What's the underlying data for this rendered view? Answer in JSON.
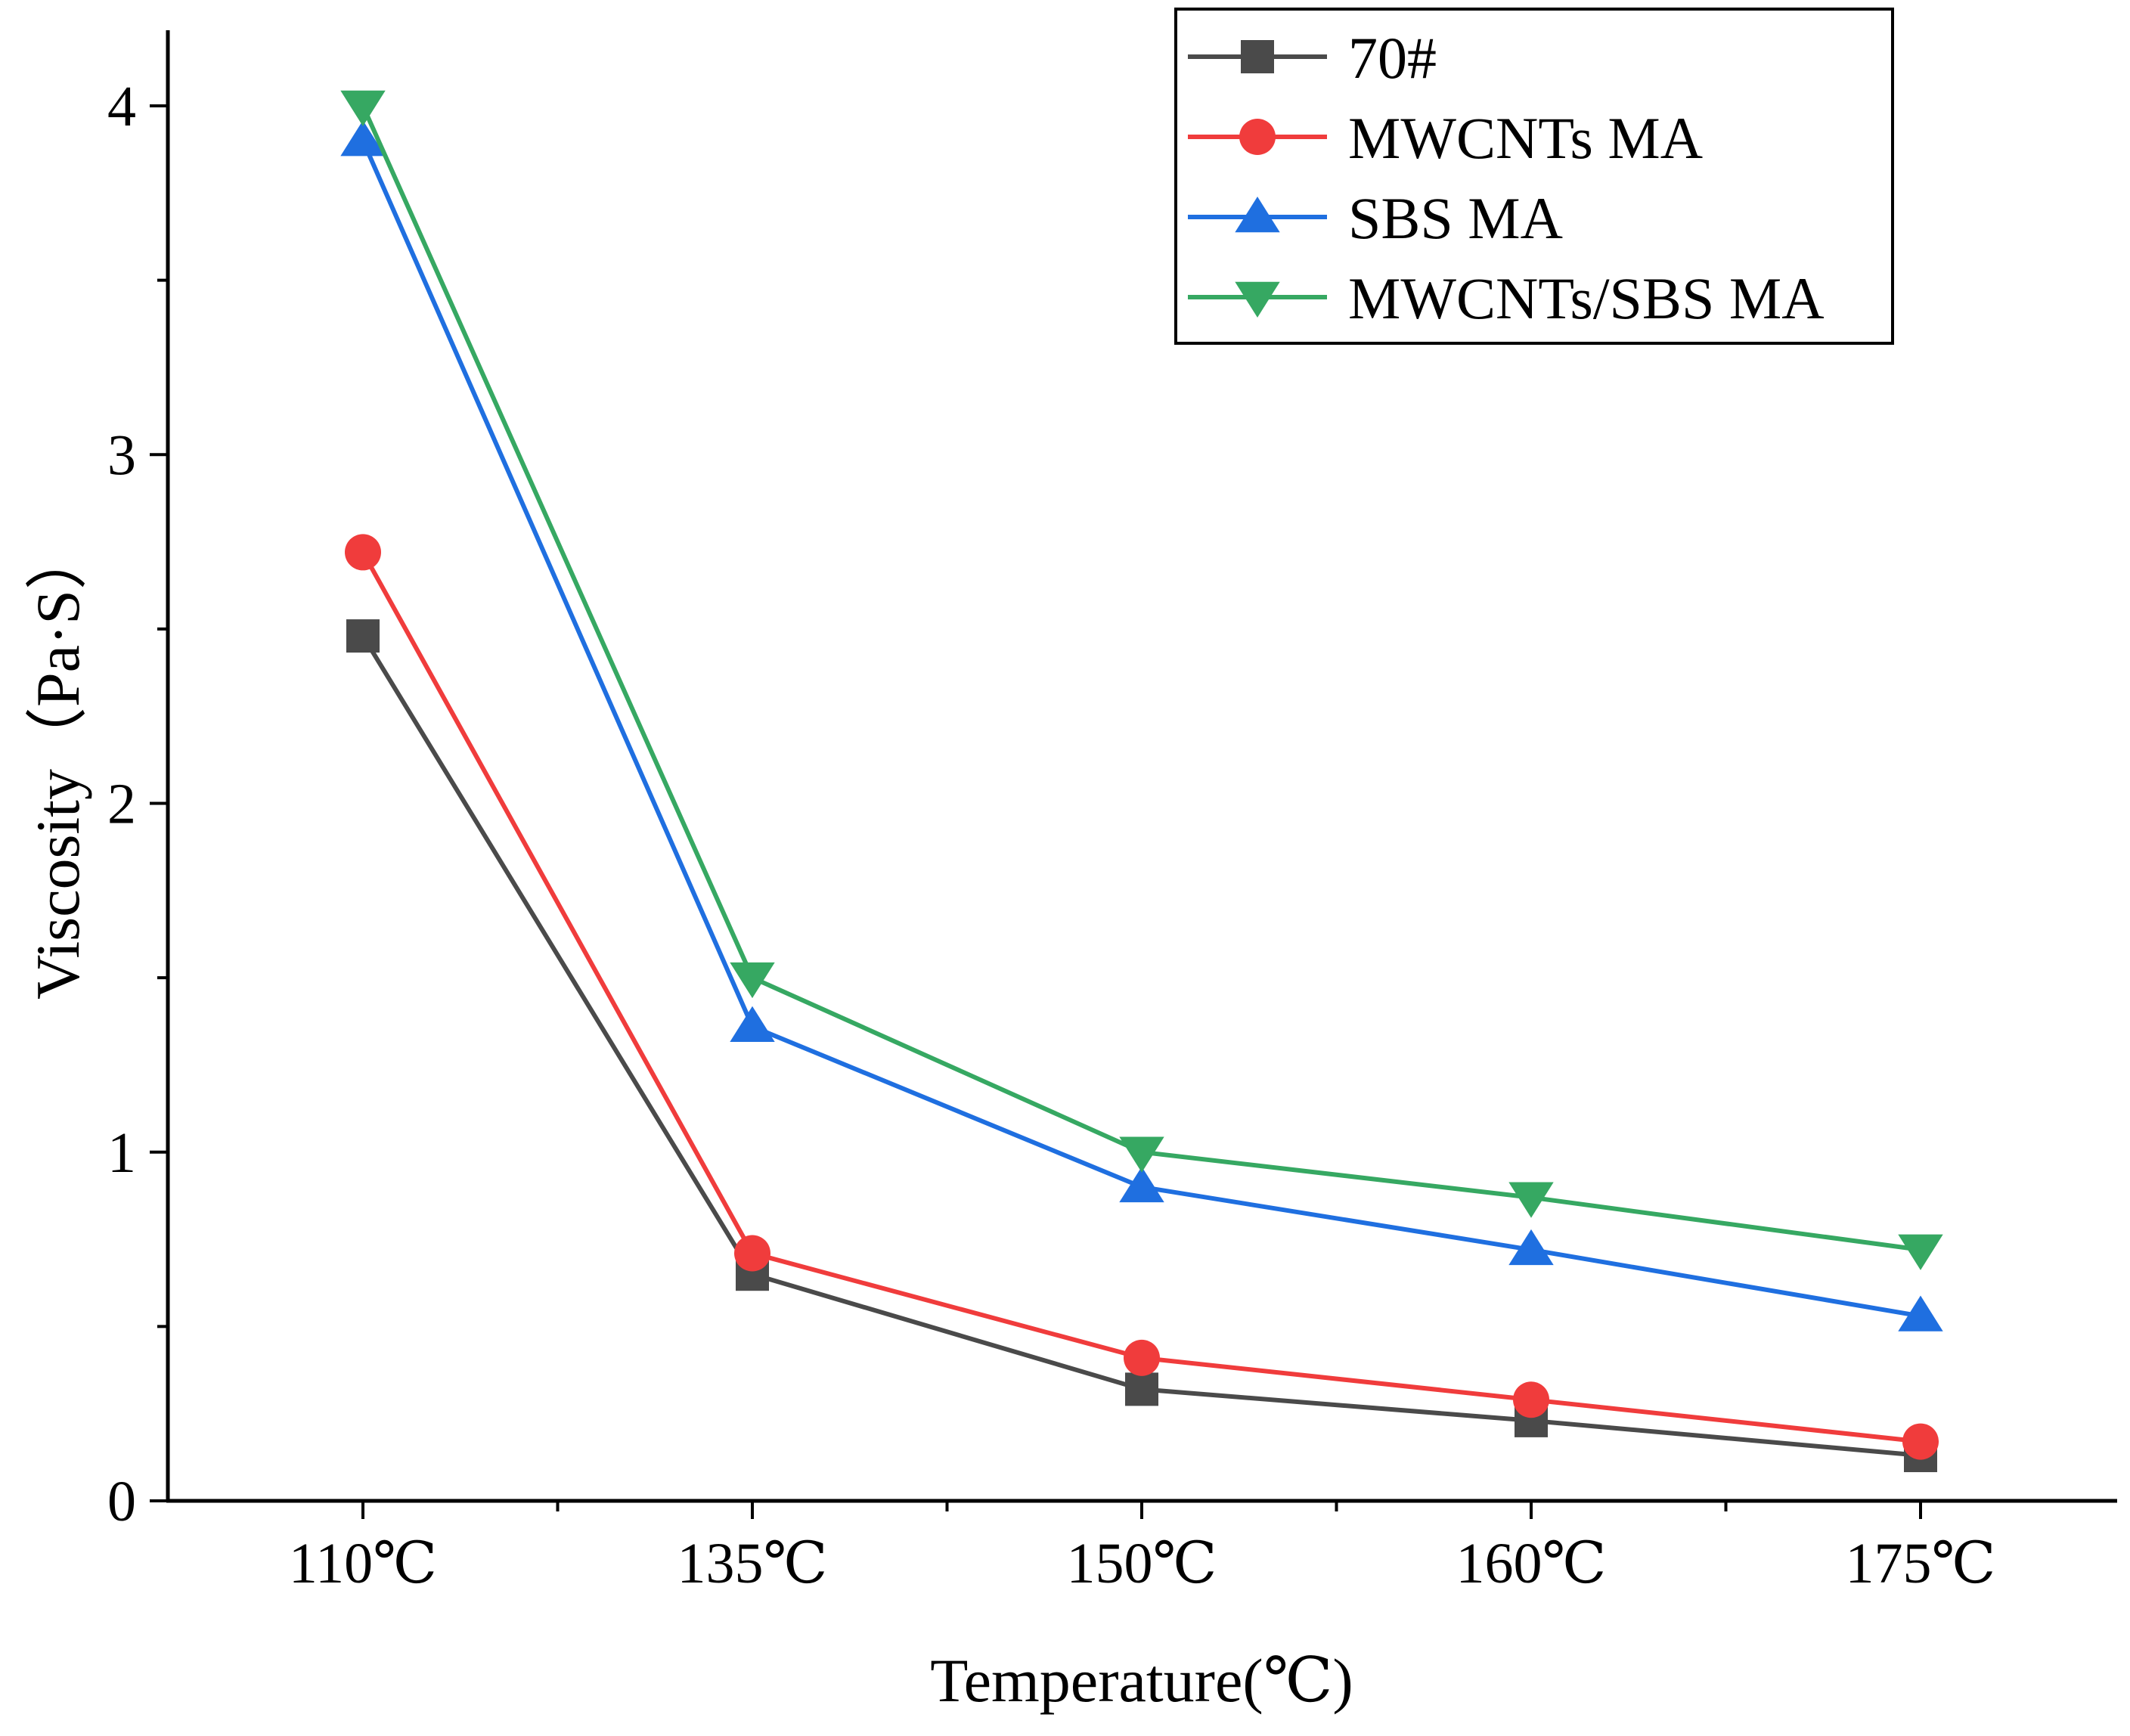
{
  "chart_data": {
    "type": "line",
    "title": "",
    "xlabel": "Temperature(℃)",
    "ylabel": "Viscosity（Pa·S）",
    "categories": [
      "110℃",
      "135℃",
      "150℃",
      "160℃",
      "175℃"
    ],
    "ylim": [
      0,
      4.2
    ],
    "yticks": [
      0,
      1,
      2,
      3,
      4
    ],
    "ytick_labels": [
      "0",
      "1",
      "2",
      "3",
      "4"
    ],
    "grid": false,
    "legend_position": "top-right",
    "series": [
      {
        "name": "70#",
        "marker": "square",
        "color": "#4a4a4a",
        "values": [
          2.48,
          0.65,
          0.32,
          0.23,
          0.13
        ]
      },
      {
        "name": "MWCNTs MA",
        "marker": "circle",
        "color": "#f03c3c",
        "values": [
          2.72,
          0.71,
          0.41,
          0.29,
          0.17
        ]
      },
      {
        "name": "SBS MA",
        "marker": "triangle-up",
        "color": "#1f6fe0",
        "values": [
          3.9,
          1.36,
          0.9,
          0.72,
          0.53
        ]
      },
      {
        "name": "MWCNTs/SBS MA",
        "marker": "triangle-down",
        "color": "#36a862",
        "values": [
          4.0,
          1.5,
          1.0,
          0.87,
          0.72
        ]
      }
    ]
  }
}
